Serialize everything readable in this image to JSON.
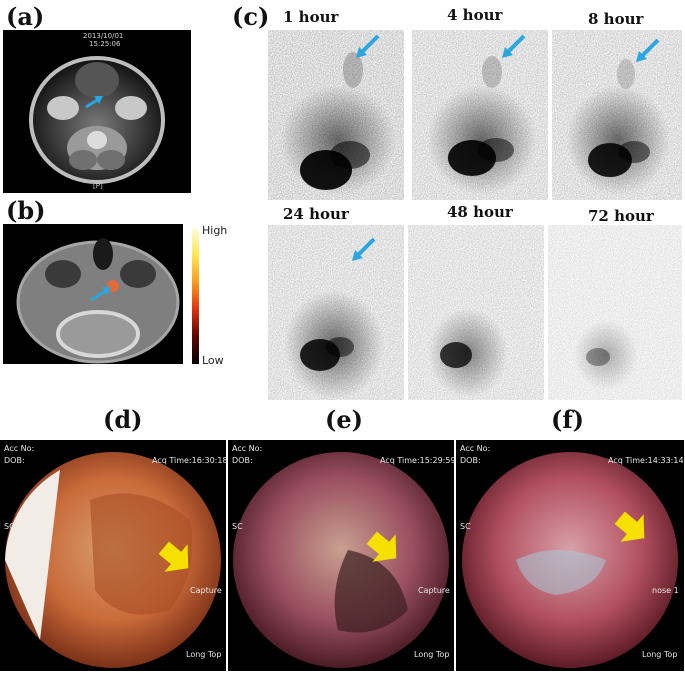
{
  "panels": {
    "a": {
      "label": "(a)",
      "date": "2013/10/01",
      "time": "15:25:06",
      "marker": "[P]"
    },
    "b": {
      "label": "(b)",
      "colorbar_high": "High",
      "colorbar_low": "Low"
    },
    "c": {
      "label": "(c)",
      "times": [
        "1 hour",
        "4 hour",
        "8 hour",
        "24 hour",
        "48 hour",
        "72 hour"
      ]
    },
    "d": {
      "label": "(d)",
      "acc_no": "Acc No:",
      "dob": "DOB:",
      "acq_time": "Acq Time:16:30:18",
      "sc": "SC",
      "capture": "Capture",
      "long_top": "Long Top"
    },
    "e": {
      "label": "(e)",
      "acc_no": "Acc No:",
      "dob": "DOB:",
      "acq_time": "Acq Time:15:29:59",
      "sc": "SC",
      "capture": "Capture",
      "long_top": "Long Top"
    },
    "f": {
      "label": "(f)",
      "acc_no": "Acc No:",
      "dob": "DOB:",
      "acq_time": "Acq Time:14:33:14",
      "sc": "SC",
      "extra": "nose 1",
      "long_top": "Long Top"
    }
  },
  "colors": {
    "arrow_blue": "#2aa6e0",
    "arrow_yellow": "#f5e000"
  }
}
